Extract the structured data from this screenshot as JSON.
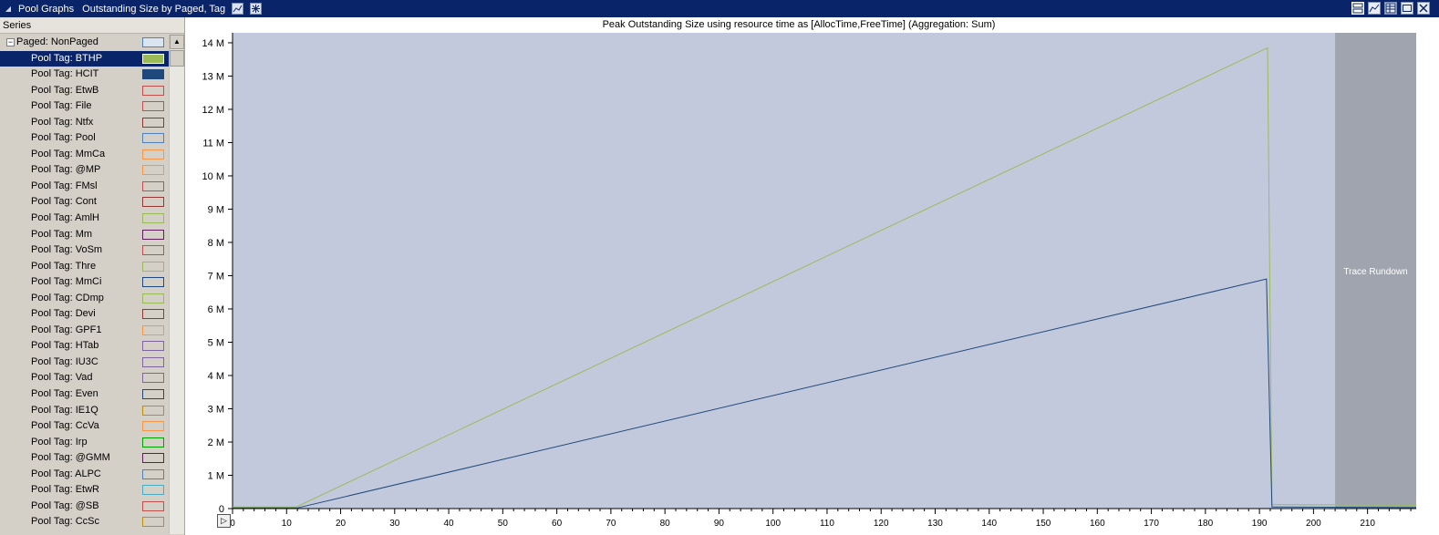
{
  "window": {
    "title": "Pool Graphs",
    "subtitle": "Outstanding Size by Paged, Tag"
  },
  "series_panel": {
    "header": "Series",
    "group": {
      "label": "Paged: NonPaged",
      "color": "#dbe5f1",
      "border": "#4f81bd",
      "expanded": true
    },
    "items": [
      {
        "label": "Pool Tag: BTHP",
        "color": "#9bbb59",
        "border": "#9bbb59",
        "filled": true,
        "selected": true
      },
      {
        "label": "Pool Tag: HCIT",
        "color": "#1f497d",
        "border": "#1f497d",
        "filled": true
      },
      {
        "label": "Pool Tag: EtwB",
        "border": "#c0504d"
      },
      {
        "label": "Pool Tag: File",
        "border": "#c0504d"
      },
      {
        "label": "Pool Tag: Ntfx",
        "border": "#943634"
      },
      {
        "label": "Pool Tag: Pool",
        "border": "#4f81bd"
      },
      {
        "label": "Pool Tag: MmCa",
        "border": "#f79646"
      },
      {
        "label": "Pool Tag: @MP",
        "border": "#f79646"
      },
      {
        "label": "Pool Tag: FMsl",
        "border": "#c0504d"
      },
      {
        "label": "Pool Tag: Cont",
        "border": "#953735"
      },
      {
        "label": "Pool Tag: AmlH",
        "border": "#9bbb59"
      },
      {
        "label": "Pool Tag: Mm",
        "border": "#5f1c5f"
      },
      {
        "label": "Pool Tag: VoSm",
        "border": "#c0504d"
      },
      {
        "label": "Pool Tag: Thre",
        "border": "#9bbb59"
      },
      {
        "label": "Pool Tag: MmCi",
        "border": "#1f497d"
      },
      {
        "label": "Pool Tag: CDmp",
        "border": "#9bbb59"
      },
      {
        "label": "Pool Tag: Devi",
        "border": "#953735"
      },
      {
        "label": "Pool Tag: GPF1",
        "border": "#f79646"
      },
      {
        "label": "Pool Tag: HTab",
        "border": "#8064a2"
      },
      {
        "label": "Pool Tag: IU3C",
        "border": "#8064a2"
      },
      {
        "label": "Pool Tag: Vad",
        "border": "#8064a2"
      },
      {
        "label": "Pool Tag: Even",
        "border": "#1f497d"
      },
      {
        "label": "Pool Tag: IE1Q",
        "border": "#c09000"
      },
      {
        "label": "Pool Tag: CcVa",
        "border": "#f79646"
      },
      {
        "label": "Pool Tag: Irp",
        "border": "#00a000"
      },
      {
        "label": "Pool Tag: @GMM",
        "border": "#5f1c5f"
      },
      {
        "label": "Pool Tag: ALPC",
        "border": "#4f81bd"
      },
      {
        "label": "Pool Tag: EtwR",
        "border": "#4bacc6"
      },
      {
        "label": "Pool Tag: @SB",
        "border": "#c0504d"
      },
      {
        "label": "Pool Tag: CcSc",
        "border": "#c09000"
      }
    ]
  },
  "chart_data": {
    "type": "line",
    "title": "Peak Outstanding Size using resource time as [AllocTime,FreeTime] (Aggregation: Sum)",
    "xlim": [
      0,
      219
    ],
    "ylim": [
      0,
      14.3
    ],
    "x_ticks": [
      0,
      10,
      20,
      30,
      40,
      50,
      60,
      70,
      80,
      90,
      100,
      110,
      120,
      130,
      140,
      150,
      160,
      170,
      180,
      190,
      200,
      210
    ],
    "y_ticks": [
      {
        "v": 0,
        "label": "0"
      },
      {
        "v": 1,
        "label": "1 M"
      },
      {
        "v": 2,
        "label": "2 M"
      },
      {
        "v": 3,
        "label": "3 M"
      },
      {
        "v": 4,
        "label": "4 M"
      },
      {
        "v": 5,
        "label": "5 M"
      },
      {
        "v": 6,
        "label": "6 M"
      },
      {
        "v": 7,
        "label": "7 M"
      },
      {
        "v": 8,
        "label": "8 M"
      },
      {
        "v": 9,
        "label": "9 M"
      },
      {
        "v": 10,
        "label": "10 M"
      },
      {
        "v": 11,
        "label": "11 M"
      },
      {
        "v": 12,
        "label": "12 M"
      },
      {
        "v": 13,
        "label": "13 M"
      },
      {
        "v": 14,
        "label": "14 M"
      }
    ],
    "plot_bg": "#c3c9dc",
    "rundown": {
      "label": "Trace Rundown",
      "x_start": 204,
      "color": "#a0a4ae"
    },
    "series": [
      {
        "name": "Pool Tag: BTHP",
        "color": "#9bbb59",
        "points": [
          [
            0,
            0.05
          ],
          [
            11.8,
            0.05
          ],
          [
            191.5,
            13.85
          ],
          [
            192.3,
            0.12
          ],
          [
            219,
            0.1
          ]
        ]
      },
      {
        "name": "Pool Tag: HCIT",
        "color": "#1f497d",
        "points": [
          [
            0,
            0.02
          ],
          [
            12,
            0.02
          ],
          [
            191.3,
            6.9
          ],
          [
            192.3,
            0.05
          ],
          [
            219,
            0.03
          ]
        ]
      }
    ]
  }
}
